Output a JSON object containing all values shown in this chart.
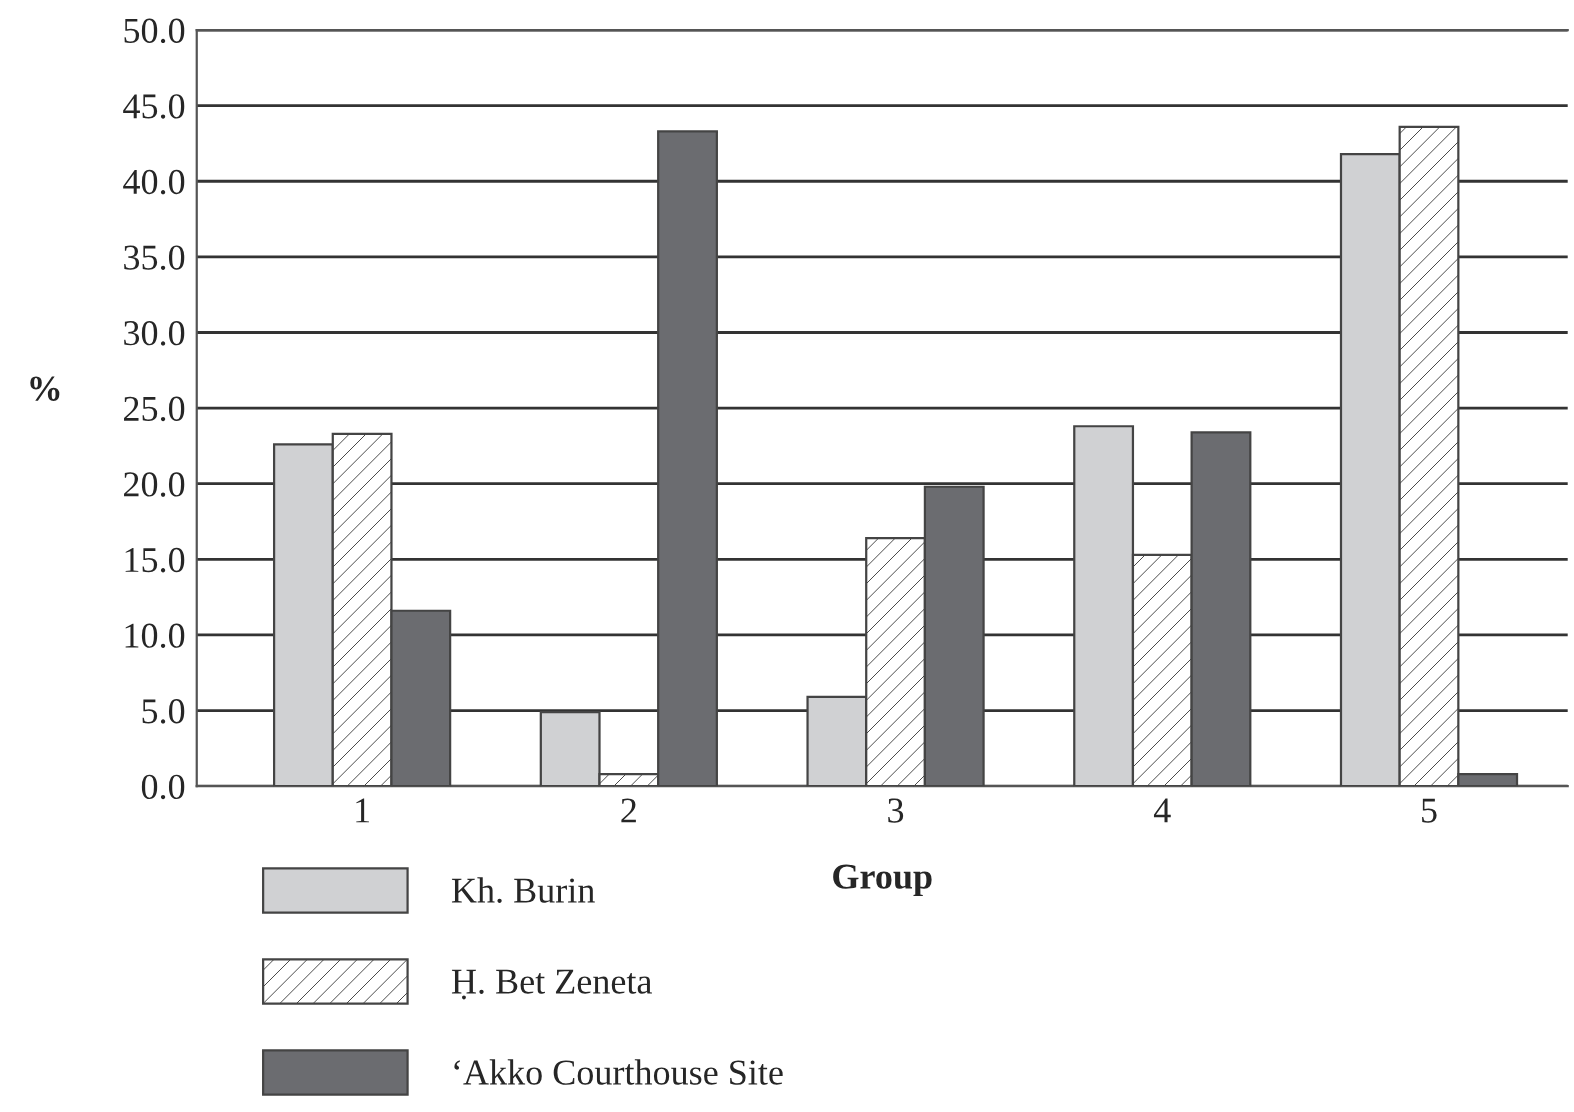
{
  "chart_data": {
    "type": "bar",
    "xlabel": "Group",
    "ylabel": "%",
    "categories": [
      "1",
      "2",
      "3",
      "4",
      "5"
    ],
    "series": [
      {
        "name": "Kh. Burin",
        "color": "#d0d1d3",
        "values": [
          22.6,
          4.9,
          5.9,
          23.8,
          41.8
        ]
      },
      {
        "name": "Ḥ. Bet Zeneta",
        "color": "#444444",
        "values": [
          23.3,
          0.8,
          16.4,
          15.3,
          43.6
        ]
      },
      {
        "name": "‘Akko Courthouse Site",
        "color": "#6b6c70",
        "values": [
          11.6,
          43.3,
          19.8,
          23.4,
          0.8
        ]
      }
    ],
    "ylim": [
      0,
      50
    ],
    "yticks": [
      {
        "value": 0,
        "label": "0.0"
      },
      {
        "value": 5,
        "label": "5.0"
      },
      {
        "value": 10,
        "label": "10.0"
      },
      {
        "value": 15,
        "label": "15.0"
      },
      {
        "value": 20,
        "label": "20.0"
      },
      {
        "value": 25,
        "label": "25.0"
      },
      {
        "value": 30,
        "label": "30.0"
      },
      {
        "value": 35,
        "label": "35.0"
      },
      {
        "value": 40,
        "label": "40.0"
      },
      {
        "value": 45,
        "label": "45.0"
      },
      {
        "value": 50,
        "label": "50.0"
      }
    ],
    "grid": "y",
    "legend": "bottom left"
  }
}
